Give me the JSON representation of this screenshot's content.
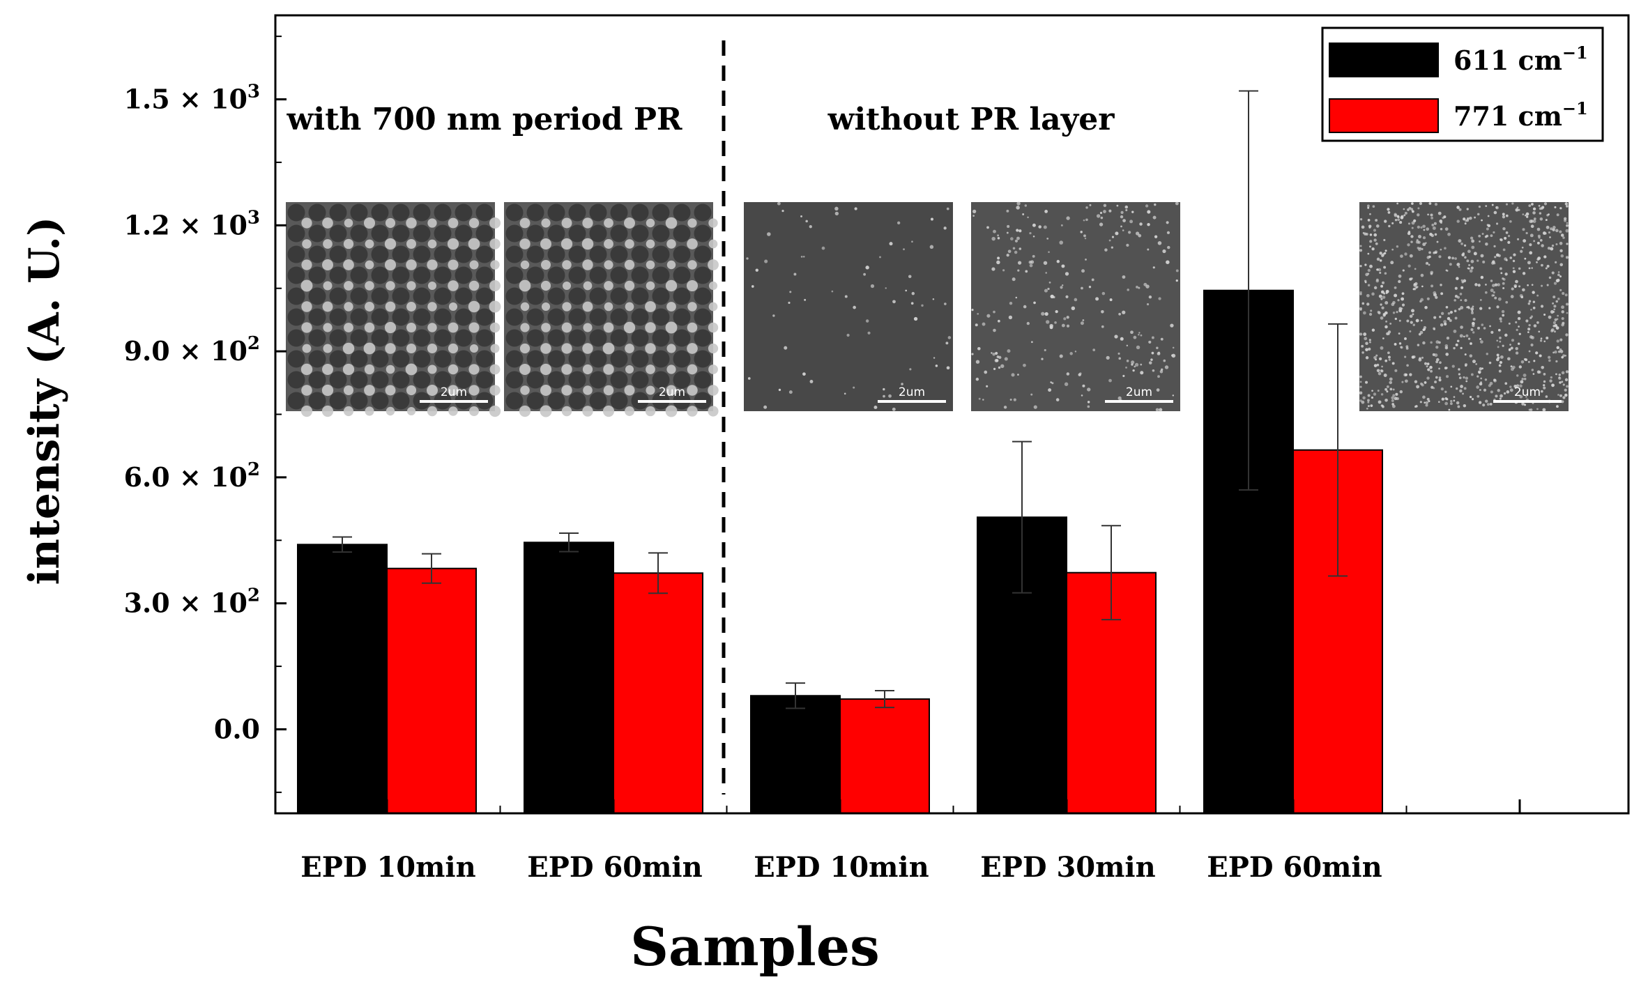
{
  "chart_data": {
    "type": "bar",
    "title": "",
    "xlabel": "Samples",
    "ylabel": "intensity (A. U.)",
    "ylim": [
      -200,
      1700
    ],
    "yticks": [
      {
        "value": 0,
        "mantissa": "0.0",
        "exponent": ""
      },
      {
        "value": 300,
        "mantissa": "3.0",
        "exponent": "2"
      },
      {
        "value": 600,
        "mantissa": "6.0",
        "exponent": "2"
      },
      {
        "value": 900,
        "mantissa": "9.0",
        "exponent": "2"
      },
      {
        "value": 1200,
        "mantissa": "1.2",
        "exponent": "3"
      },
      {
        "value": 1500,
        "mantissa": "1.5",
        "exponent": "3"
      }
    ],
    "tick_times": " × 10",
    "categories": [
      "EPD 10min",
      "EPD 60min",
      "EPD 10min",
      "EPD 30min",
      "EPD 60min"
    ],
    "series": [
      {
        "name": "611 cm",
        "sup": "−1",
        "color": "#000000",
        "values": [
          440,
          445,
          80,
          505,
          1045
        ],
        "errors": [
          18,
          22,
          30,
          180,
          475
        ]
      },
      {
        "name": "771 cm",
        "sup": "−1",
        "color": "#ff0000",
        "values": [
          383,
          372,
          72,
          373,
          665
        ],
        "errors": [
          35,
          48,
          20,
          112,
          300
        ]
      }
    ],
    "legend_position": "top-right",
    "regions": [
      {
        "label": "with 700 nm period PR"
      },
      {
        "label": "without PR layer"
      }
    ],
    "divider_between_categories": [
      1,
      2
    ],
    "inset_images": [
      {
        "kind": "grid-pattern",
        "scale_bar": "2um"
      },
      {
        "kind": "grid-pattern",
        "scale_bar": "2um"
      },
      {
        "kind": "sparse-particles",
        "scale_bar": "2um"
      },
      {
        "kind": "clustered-particles",
        "scale_bar": "2um"
      },
      {
        "kind": "dense-particles",
        "scale_bar": "2um"
      }
    ]
  }
}
